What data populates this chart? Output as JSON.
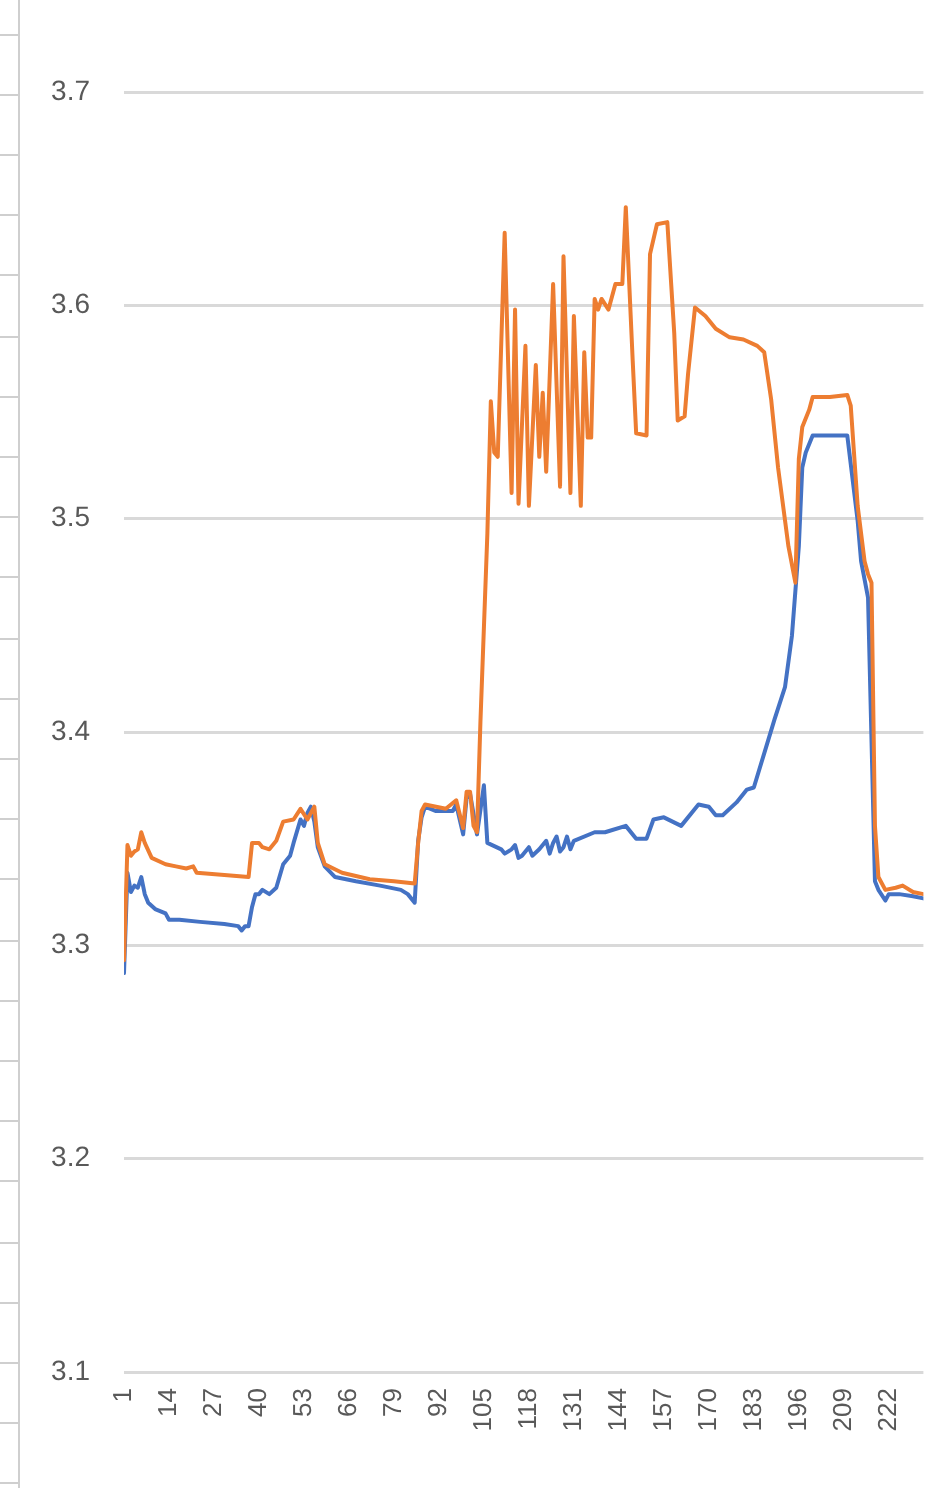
{
  "chart_data": {
    "type": "line",
    "xlim": [
      1,
      232
    ],
    "xticks": [
      1,
      14,
      27,
      40,
      53,
      66,
      79,
      92,
      105,
      118,
      131,
      144,
      157,
      170,
      183,
      196,
      209,
      222
    ],
    "ylim": [
      3.1,
      3.7
    ],
    "yticks": [
      3.1,
      3.2,
      3.3,
      3.4,
      3.5,
      3.6,
      3.7
    ],
    "grid": "y",
    "marker": "none",
    "line_style": "solid",
    "series": [
      {
        "color": "#4472c4",
        "x": [
          1,
          2,
          3,
          4,
          5,
          6,
          7,
          8,
          10,
          13,
          14,
          17,
          23,
          30,
          34,
          35,
          36,
          37,
          38,
          39,
          40,
          41,
          43,
          45,
          47,
          49,
          50,
          52,
          53,
          54,
          55,
          56,
          57,
          59,
          62,
          68,
          75,
          81,
          83,
          85,
          86,
          87,
          88,
          91,
          96,
          97,
          99,
          100,
          101,
          103,
          105,
          106,
          110,
          111,
          113,
          114,
          115,
          116,
          118,
          119,
          121,
          123,
          124,
          125,
          126,
          127,
          128,
          129,
          130,
          131,
          137,
          140,
          146,
          149,
          152,
          154,
          157,
          162,
          167,
          170,
          172,
          174,
          178,
          181,
          183,
          186,
          189,
          192,
          194,
          196,
          197,
          198,
          200,
          210,
          213,
          214,
          216,
          218,
          219,
          221,
          222,
          225,
          229,
          232
        ],
        "values": [
          3.287,
          3.334,
          3.325,
          3.328,
          3.327,
          3.332,
          3.324,
          3.32,
          3.317,
          3.315,
          3.312,
          3.312,
          3.311,
          3.31,
          3.309,
          3.307,
          3.309,
          3.309,
          3.318,
          3.324,
          3.324,
          3.326,
          3.324,
          3.327,
          3.338,
          3.342,
          3.348,
          3.359,
          3.356,
          3.362,
          3.365,
          3.358,
          3.346,
          3.337,
          3.332,
          3.33,
          3.328,
          3.326,
          3.324,
          3.32,
          3.349,
          3.36,
          3.365,
          3.363,
          3.363,
          3.366,
          3.352,
          3.369,
          3.371,
          3.352,
          3.375,
          3.348,
          3.345,
          3.343,
          3.345,
          3.347,
          3.341,
          3.342,
          3.346,
          3.342,
          3.345,
          3.349,
          3.343,
          3.348,
          3.351,
          3.344,
          3.346,
          3.351,
          3.345,
          3.349,
          3.353,
          3.353,
          3.356,
          3.35,
          3.35,
          3.359,
          3.36,
          3.356,
          3.366,
          3.365,
          3.361,
          3.361,
          3.367,
          3.373,
          3.374,
          3.39,
          3.406,
          3.421,
          3.445,
          3.487,
          3.524,
          3.531,
          3.539,
          3.539,
          3.499,
          3.48,
          3.463,
          3.33,
          3.326,
          3.321,
          3.324,
          3.324,
          3.323,
          3.322
        ]
      },
      {
        "color": "#ed7d31",
        "x": [
          1,
          2,
          3,
          4,
          5,
          6,
          7,
          9,
          13,
          16,
          19,
          21,
          22,
          30,
          37,
          38,
          40,
          41,
          43,
          45,
          47,
          50,
          52,
          54,
          56,
          57,
          59,
          64,
          72,
          79,
          85,
          86,
          87,
          88,
          94,
          97,
          99,
          100,
          101,
          102,
          103,
          104,
          106,
          107,
          108,
          109,
          111,
          113,
          114,
          115,
          117,
          118,
          120,
          121,
          122,
          123,
          125,
          127,
          128,
          130,
          131,
          133,
          134,
          135,
          136,
          137,
          138,
          139,
          141,
          143,
          145,
          146,
          148,
          149,
          152,
          153,
          155,
          158,
          160,
          161,
          163,
          164,
          166,
          169,
          172,
          176,
          180,
          184,
          186,
          188,
          190,
          193,
          195,
          196,
          197,
          199,
          200,
          205,
          210,
          211,
          213,
          215,
          216,
          217,
          218,
          219,
          221,
          224,
          226,
          229,
          232
        ],
        "values": [
          3.293,
          3.347,
          3.342,
          3.344,
          3.345,
          3.353,
          3.348,
          3.341,
          3.338,
          3.337,
          3.336,
          3.337,
          3.334,
          3.333,
          3.332,
          3.348,
          3.348,
          3.346,
          3.345,
          3.349,
          3.358,
          3.359,
          3.364,
          3.359,
          3.365,
          3.348,
          3.338,
          3.334,
          3.331,
          3.33,
          3.329,
          3.348,
          3.363,
          3.366,
          3.364,
          3.368,
          3.355,
          3.372,
          3.372,
          3.356,
          3.353,
          3.405,
          3.493,
          3.555,
          3.531,
          3.529,
          3.634,
          3.512,
          3.598,
          3.507,
          3.581,
          3.506,
          3.572,
          3.529,
          3.559,
          3.522,
          3.61,
          3.515,
          3.623,
          3.512,
          3.595,
          3.506,
          3.578,
          3.538,
          3.538,
          3.603,
          3.598,
          3.603,
          3.598,
          3.61,
          3.61,
          3.646,
          3.574,
          3.54,
          3.539,
          3.624,
          3.638,
          3.639,
          3.587,
          3.546,
          3.548,
          3.568,
          3.599,
          3.595,
          3.589,
          3.585,
          3.584,
          3.581,
          3.578,
          3.556,
          3.524,
          3.487,
          3.47,
          3.528,
          3.543,
          3.551,
          3.557,
          3.557,
          3.558,
          3.553,
          3.506,
          3.48,
          3.474,
          3.47,
          3.356,
          3.332,
          3.326,
          3.327,
          3.328,
          3.325,
          3.324
        ]
      }
    ]
  }
}
